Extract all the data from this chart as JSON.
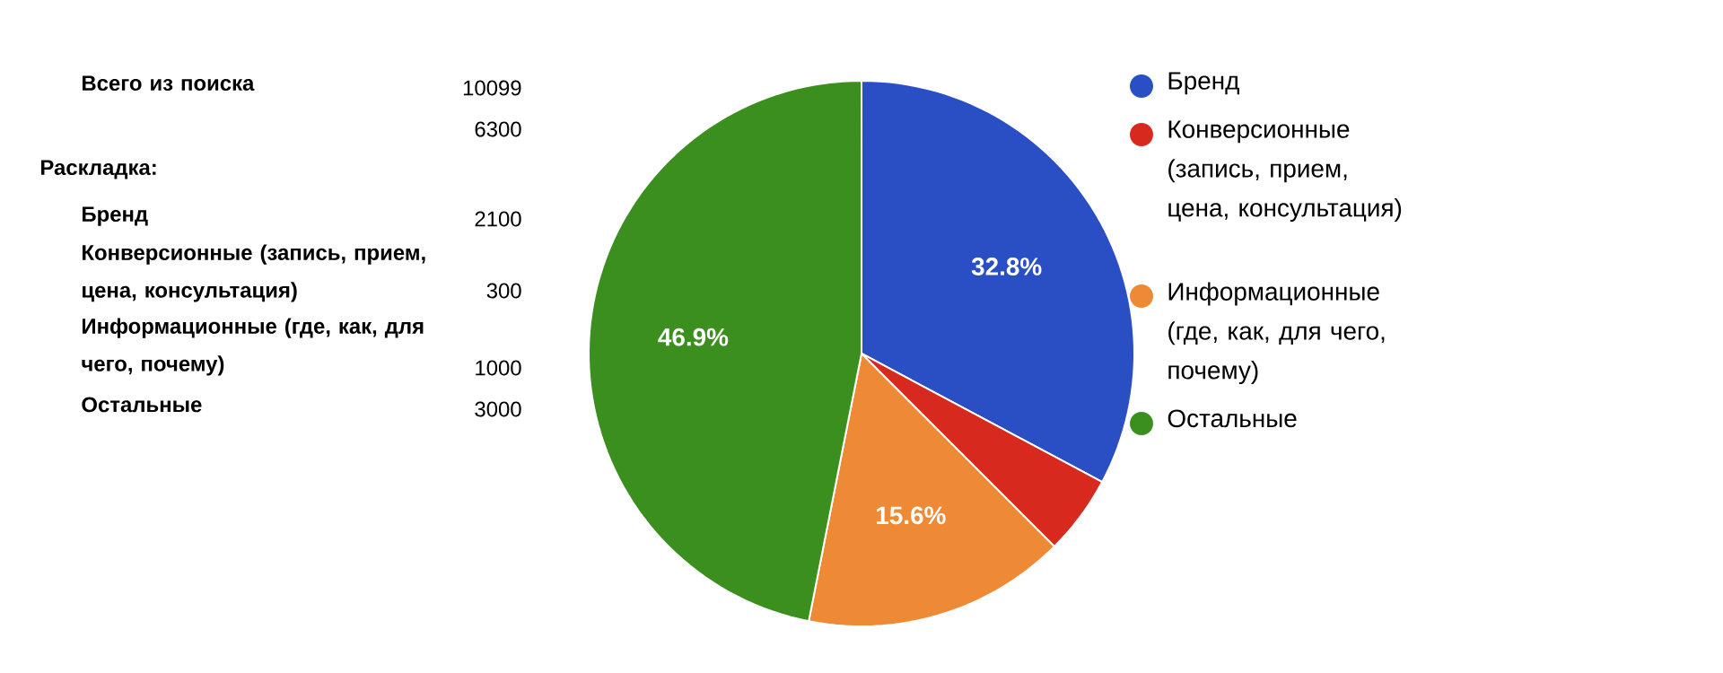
{
  "chart_data": {
    "type": "pie",
    "categories": [
      "Бренд",
      "Конверсионные (запись, прием, цена, консультация)",
      "Информационные (где, как, для чего, почему)",
      "Остальные"
    ],
    "values": [
      32.8,
      4.7,
      15.6,
      46.9
    ],
    "value_labels": [
      "32.8%",
      null,
      "15.6%",
      "46.9%"
    ],
    "colors": [
      "#2a4ec4",
      "#d8291f",
      "#ee8a35",
      "#3a8f1e"
    ],
    "legend": "right",
    "annotations": [
      "Всего из поиска",
      "10099",
      "6300",
      "Раскладка:",
      "Бренд",
      "2100",
      "Конверсионные (запись, прием, цена, консультация)",
      "300",
      "Информационные (где, как, для чего, почему)",
      "1000",
      "Остальные",
      "3000"
    ]
  }
}
